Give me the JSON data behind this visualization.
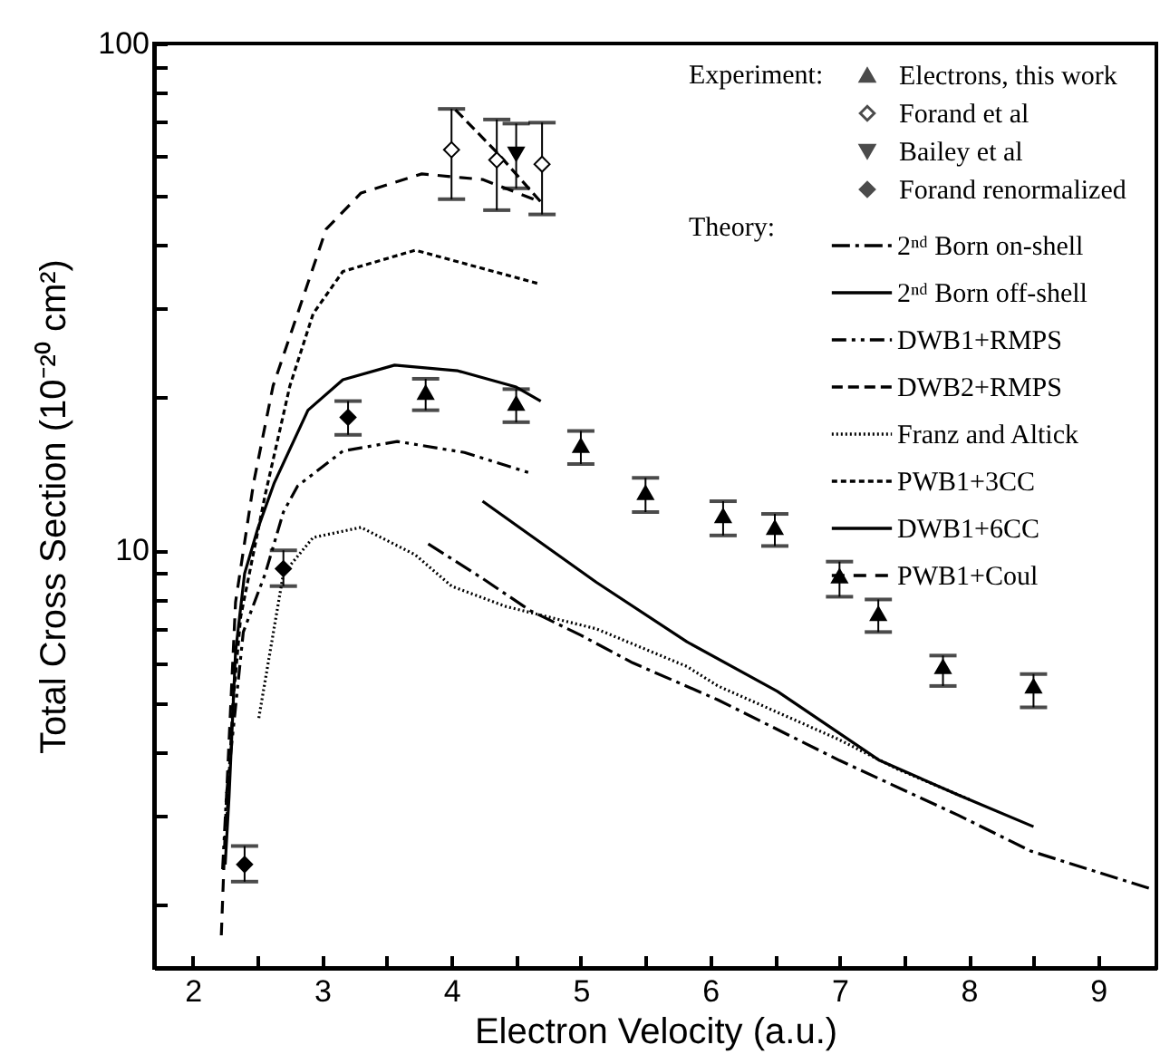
{
  "chart_data": {
    "type": "scatter",
    "xlabel": "Electron Velocity (a.u.)",
    "ylabel": "Total Cross Section (10⁻²⁰ cm²)",
    "xlim": [
      1.7,
      9.45
    ],
    "xticks": [
      2,
      {
        "value": 2.5,
        "label": null
      },
      3,
      {
        "value": 3.5,
        "label": null
      },
      4,
      {
        "value": 4.5,
        "label": null
      },
      5,
      {
        "value": 5.5,
        "label": null
      },
      6,
      {
        "value": 6.5,
        "label": null
      },
      7,
      {
        "value": 7.5,
        "label": null
      },
      8,
      {
        "value": 8.5,
        "label": null
      },
      9
    ],
    "ylim": [
      1.5,
      100
    ],
    "yticks": [
      {
        "value": 2,
        "label": null
      },
      {
        "value": 3,
        "label": null
      },
      {
        "value": 4,
        "label": null
      },
      {
        "value": 5,
        "label": null
      },
      {
        "value": 6,
        "label": null
      },
      {
        "value": 7,
        "label": null
      },
      {
        "value": 8,
        "label": null
      },
      {
        "value": 9,
        "label": null
      },
      10,
      {
        "value": 20,
        "label": null
      },
      {
        "value": 30,
        "label": null
      },
      {
        "value": 40,
        "label": null
      },
      {
        "value": 50,
        "label": null
      },
      {
        "value": 60,
        "label": null
      },
      {
        "value": 70,
        "label": null
      },
      {
        "value": 80,
        "label": null
      },
      {
        "value": 90,
        "label": null
      },
      100
    ],
    "log": "y",
    "legend": "top right",
    "annotations": [
      "Experiment:",
      "Theory:"
    ],
    "series": [
      {
        "name": "Electrons, this work",
        "marker": "triangle",
        "color": "#000000",
        "x": [
          3.8,
          4.5,
          5.0,
          5.5,
          6.1,
          6.5,
          7.0,
          7.3,
          7.8,
          8.5
        ],
        "values": [
          20.5,
          19.5,
          16.1,
          13.0,
          11.7,
          11.1,
          8.9,
          7.5,
          5.9,
          5.4
        ],
        "errors": [
          [
            18.9,
            21.8
          ],
          [
            17.9,
            20.8
          ],
          [
            14.8,
            17.2
          ],
          [
            11.9,
            13.9
          ],
          [
            10.7,
            12.5
          ],
          [
            10.2,
            11.8
          ],
          [
            8.1,
            9.5
          ],
          [
            6.9,
            8.0
          ],
          [
            5.4,
            6.2
          ],
          [
            4.9,
            5.7
          ]
        ]
      },
      {
        "name": "Forand et al",
        "marker": "diamond-open",
        "color": "#000000",
        "x": [
          4.0,
          4.35,
          4.7
        ],
        "values": [
          61.7,
          58.9,
          57.8
        ],
        "errors": [
          [
            49.3,
            74.3
          ],
          [
            46.9,
            70.8
          ],
          [
            46.0,
            69.8
          ]
        ]
      },
      {
        "name": "Bailey et al",
        "marker": "triangle-down",
        "color": "#000000",
        "x": [
          4.5
        ],
        "values": [
          60.5
        ],
        "errors": [
          [
            51.8,
            69.5
          ]
        ]
      },
      {
        "name": "Forand renormalized",
        "marker": "diamond",
        "color": "#000000",
        "x": [
          2.4,
          2.7,
          3.2
        ],
        "values": [
          2.4,
          9.2,
          18.3
        ],
        "errors": [
          [
            2.22,
            2.61
          ],
          [
            8.5,
            10.0
          ],
          [
            16.9,
            19.7
          ]
        ]
      },
      {
        "name": "2ⁿᵈ Born on-shell",
        "type": "line",
        "line_style": "dashdot",
        "color": "#000000",
        "x": [
          3.82,
          4.24,
          4.61,
          5.0,
          5.4,
          6.06,
          7.0,
          7.92,
          8.48,
          9.43
        ],
        "values": [
          10.3,
          8.8,
          7.6,
          6.8,
          6.0,
          5.07,
          3.85,
          3.0,
          2.55,
          2.14
        ]
      },
      {
        "name": "2ⁿᵈ Born off-shell",
        "type": "line",
        "line_style": "solid",
        "color": "#000000",
        "x": [
          4.24,
          5.12,
          5.82,
          6.52,
          7.31,
          7.92,
          8.5
        ],
        "values": [
          12.5,
          8.65,
          6.6,
          5.27,
          3.85,
          3.29,
          2.85
        ]
      },
      {
        "name": "DWB1+RMPS",
        "type": "line",
        "line_style": "dashdotdot",
        "color": "#000000",
        "x": [
          2.23,
          2.26,
          2.33,
          2.39,
          2.56,
          2.7,
          2.81,
          3.16,
          3.58,
          4.1,
          4.61
        ],
        "values": [
          2.35,
          3.3,
          4.9,
          6.9,
          9.0,
          11.9,
          13.4,
          15.7,
          16.4,
          15.6,
          14.2
        ]
      },
      {
        "name": "DWB2+RMPS",
        "type": "line",
        "line_style": "dashed",
        "color": "#000000",
        "x": [
          4.03,
          4.35,
          4.69
        ],
        "values": [
          74,
          61,
          48.7
        ]
      },
      {
        "name": "Franz and Altick",
        "type": "line",
        "line_style": "dotted",
        "color": "#000000",
        "x": [
          2.51,
          2.7,
          2.93,
          3.3,
          3.72,
          4.0,
          4.42,
          5.12,
          5.82,
          6.06,
          6.99,
          7.45,
          8.01
        ],
        "values": [
          4.67,
          9.0,
          10.6,
          11.1,
          9.8,
          8.5,
          7.75,
          7.0,
          5.9,
          5.4,
          4.24,
          3.7,
          3.22
        ]
      },
      {
        "name": "PWB1+3CC",
        "type": "line",
        "line_style": "shortdash",
        "color": "#000000",
        "x": [
          2.26,
          2.31,
          2.37,
          2.56,
          2.75,
          2.93,
          3.16,
          3.72,
          4.67
        ],
        "values": [
          2.85,
          5.0,
          7.4,
          12.9,
          21.1,
          29.3,
          35.5,
          39.1,
          33.6
        ]
      },
      {
        "name": "DWB1+6CC",
        "type": "line",
        "line_style": "solid",
        "color": "#000000",
        "x": [
          2.25,
          2.28,
          2.33,
          2.4,
          2.5,
          2.63,
          2.89,
          3.16,
          3.56,
          4.05,
          4.5,
          4.69
        ],
        "values": [
          2.4,
          3.27,
          6.3,
          9.0,
          11.0,
          13.6,
          18.9,
          21.7,
          23.2,
          22.6,
          21,
          19.7
        ]
      },
      {
        "name": "PWB1+Coul",
        "type": "line",
        "line_style": "longdash",
        "color": "#000000",
        "x": [
          2.22,
          2.26,
          2.33,
          2.47,
          2.62,
          2.84,
          3.03,
          3.3,
          3.77,
          4.24,
          4.69
        ],
        "values": [
          1.74,
          3.27,
          7.9,
          13.6,
          21.1,
          30.9,
          43,
          50.7,
          55.3,
          53.9,
          48.7
        ]
      }
    ]
  }
}
